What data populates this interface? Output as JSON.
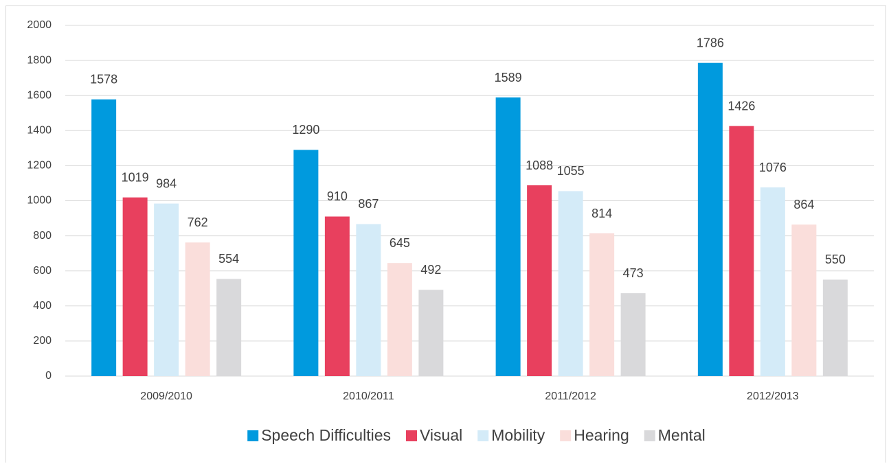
{
  "chart_data": {
    "type": "bar",
    "categories": [
      "2009/2010",
      "2010/2011",
      "2011/2012",
      "2012/2013"
    ],
    "series": [
      {
        "name": "Speech Difficulties",
        "color": "#009ade",
        "values": [
          1578,
          1290,
          1589,
          1786
        ]
      },
      {
        "name": "Visual",
        "color": "#e8405e",
        "values": [
          1019,
          910,
          1088,
          1426
        ]
      },
      {
        "name": "Mobility",
        "color": "#d4ebf8",
        "values": [
          984,
          867,
          1055,
          1076
        ]
      },
      {
        "name": "Hearing",
        "color": "#fadedb",
        "values": [
          762,
          645,
          814,
          864
        ]
      },
      {
        "name": "Mental",
        "color": "#d9d9db",
        "values": [
          554,
          492,
          473,
          550
        ]
      }
    ],
    "ylim": [
      0,
      2000
    ],
    "yticks": [
      0,
      200,
      400,
      600,
      800,
      1000,
      1200,
      1400,
      1600,
      1800,
      2000
    ],
    "grid": true,
    "legend": "bottom"
  }
}
